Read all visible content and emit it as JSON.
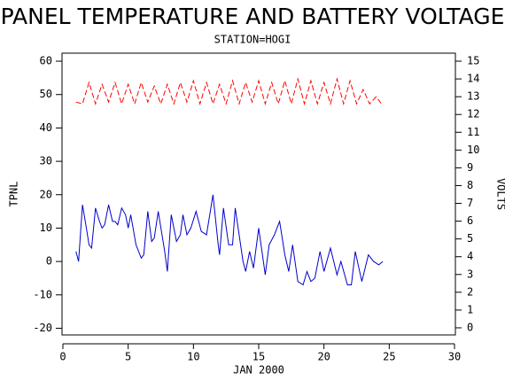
{
  "chart_data": {
    "type": "line",
    "title": "PANEL TEMPERATURE AND BATTERY VOLTAGE",
    "subtitle": "STATION=HOGI",
    "x_label": "JAN 2000",
    "y_label": "TPNL",
    "y2_label": "VOLTS",
    "xlim": [
      0,
      30
    ],
    "xticks": [
      0,
      5,
      10,
      15,
      20,
      25,
      30
    ],
    "ylim": [
      -22,
      62.4
    ],
    "yticks": [
      -20,
      -10,
      0,
      10,
      20,
      30,
      40,
      50,
      60
    ],
    "y2lim": [
      -0.4,
      15.45
    ],
    "y2ticks": [
      0,
      1,
      2,
      3,
      4,
      5,
      6,
      7,
      8,
      9,
      10,
      11,
      12,
      13,
      14,
      15
    ],
    "series": [
      {
        "color": "#0000cc",
        "axis": "y",
        "dash": false,
        "x": [
          1.0,
          1.2,
          1.5,
          1.8,
          2.0,
          2.2,
          2.5,
          2.8,
          3.0,
          3.2,
          3.5,
          3.8,
          4.0,
          4.2,
          4.5,
          4.8,
          5.0,
          5.2,
          5.6,
          6.0,
          6.2,
          6.5,
          6.8,
          7.0,
          7.3,
          7.8,
          8.0,
          8.3,
          8.7,
          9.0,
          9.2,
          9.5,
          9.8,
          10.2,
          10.6,
          11.0,
          11.5,
          11.9,
          12.0,
          12.3,
          12.7,
          13.0,
          13.2,
          13.8,
          14.0,
          14.3,
          14.6,
          15.0,
          15.5,
          15.8,
          16.2,
          16.6,
          17.0,
          17.3,
          17.6,
          18.0,
          18.4,
          18.7,
          19.0,
          19.3,
          19.7,
          20.0,
          20.5,
          21.0,
          21.3,
          21.8,
          22.1,
          22.4,
          22.9,
          23.4,
          23.8,
          24.2,
          24.5
        ],
        "values": [
          3,
          0,
          17,
          10,
          5,
          4,
          16,
          12,
          10,
          11,
          17,
          12,
          12,
          11,
          16,
          14,
          10,
          14,
          5,
          1,
          2,
          15,
          6,
          7,
          15,
          3,
          -3,
          14,
          6,
          8,
          14,
          8,
          10,
          15,
          9,
          8,
          20,
          5,
          2,
          16,
          5,
          5,
          16,
          0,
          -3,
          3,
          -2,
          10,
          -4,
          5,
          8,
          12,
          2,
          -3,
          5,
          -6,
          -7,
          -3,
          -6,
          -5,
          3,
          -3,
          4,
          -4,
          0,
          -7,
          -7,
          3,
          -6,
          2,
          0,
          -1,
          0
        ]
      },
      {
        "color": "#ff0000",
        "axis": "y2",
        "dash": true,
        "x": [
          1,
          1.5,
          2,
          2.5,
          3,
          3.5,
          4,
          4.5,
          5,
          5.5,
          6,
          6.5,
          7,
          7.5,
          8,
          8.5,
          9,
          9.5,
          10,
          10.5,
          11,
          11.5,
          12,
          12.5,
          13,
          13.5,
          14,
          14.5,
          15,
          15.5,
          16,
          16.5,
          17,
          17.5,
          18,
          18.5,
          19,
          19.5,
          20,
          20.5,
          21,
          21.5,
          22,
          22.5,
          23,
          23.5,
          24,
          24.5
        ],
        "values": [
          12.7,
          12.6,
          13.8,
          12.6,
          13.7,
          12.7,
          13.8,
          12.6,
          13.7,
          12.6,
          13.8,
          12.7,
          13.6,
          12.6,
          13.7,
          12.6,
          13.8,
          12.7,
          13.9,
          12.6,
          13.8,
          12.6,
          13.7,
          12.6,
          13.9,
          12.6,
          13.8,
          12.7,
          13.9,
          12.6,
          13.8,
          12.6,
          13.9,
          12.6,
          14.0,
          12.6,
          13.9,
          12.6,
          13.8,
          12.6,
          14.0,
          12.6,
          13.9,
          12.6,
          13.4,
          12.6,
          13.0,
          12.5
        ]
      }
    ]
  }
}
